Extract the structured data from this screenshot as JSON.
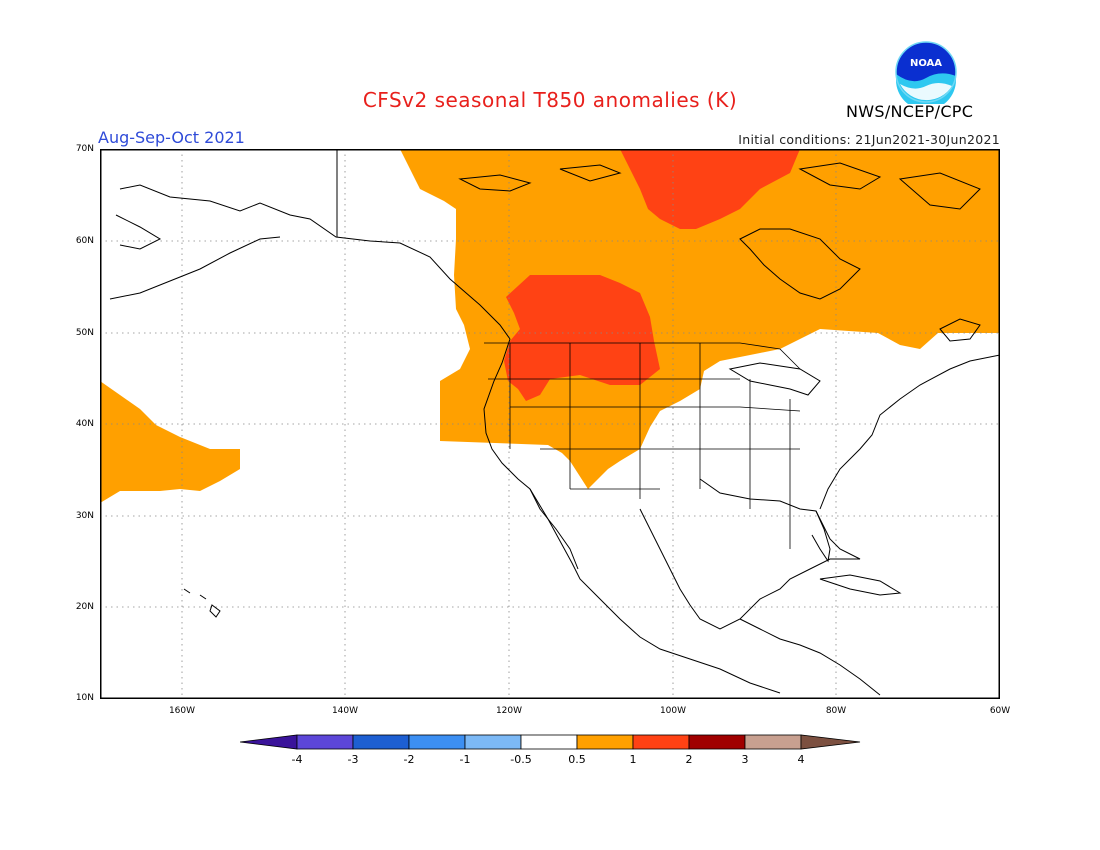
{
  "title": "CFSv2 seasonal T850 anomalies (K)",
  "period": "Aug-Sep-Oct 2021",
  "initial_conditions": "Initial conditions: 21Jun2021-30Jun2021",
  "agency": "NWS/NCEP/CPC",
  "logo_text": "NOAA",
  "latitude_labels": [
    "70N",
    "60N",
    "50N",
    "40N",
    "30N",
    "20N",
    "10N"
  ],
  "longitude_labels": [
    "160W",
    "140W",
    "120W",
    "100W",
    "80W",
    "60W"
  ],
  "colorbar": {
    "labels": [
      "-4",
      "-3",
      "-2",
      "-1",
      "-0.5",
      "0.5",
      "1",
      "2",
      "3",
      "4"
    ],
    "colors": [
      "#3a139a",
      "#5c46d8",
      "#1d5fd2",
      "#3c8ff2",
      "#7cb9f6",
      "#ffffff",
      "#ffa000",
      "#ff4214",
      "#a00000",
      "#c8a090",
      "#7c5040"
    ]
  },
  "anomaly_colors": {
    "warm1": "#ffa000",
    "warm2": "#ff4214"
  }
}
